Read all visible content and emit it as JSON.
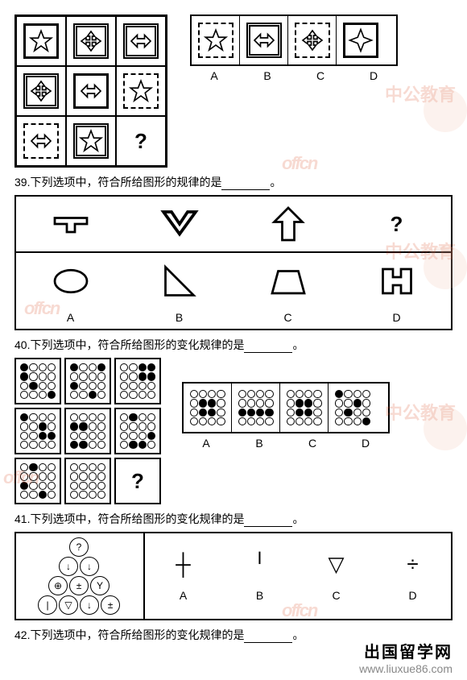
{
  "questions": {
    "q39": {
      "text": "39.下列选项中，符合所给图形的规律的是",
      "punct": "。"
    },
    "q40": {
      "text": "40.下列选项中，符合所给图形的变化规律的是",
      "punct": "。"
    },
    "q41": {
      "text": "41.下列选项中，符合所给图形的变化规律的是",
      "punct": "。"
    },
    "q42": {
      "text": "42.下列选项中，符合所给图形的变化规律的是",
      "punct": "。"
    }
  },
  "labels": {
    "A": "A",
    "B": "B",
    "C": "C",
    "D": "D"
  },
  "qmark": "?",
  "q38": {
    "grid": [
      {
        "frame": "solid",
        "shape": "star"
      },
      {
        "frame": "thick",
        "shape": "cross-arrow"
      },
      {
        "frame": "thick",
        "shape": "dbl-arrow"
      },
      {
        "frame": "thick",
        "shape": "cross-arrow"
      },
      {
        "frame": "solid",
        "shape": "dbl-arrow"
      },
      {
        "frame": "dashed",
        "shape": "star"
      },
      {
        "frame": "dashed",
        "shape": "dbl-arrow"
      },
      {
        "frame": "thick",
        "shape": "star"
      },
      {
        "frame": "none",
        "shape": "qmark"
      }
    ],
    "options": [
      {
        "frame": "dashed",
        "shape": "star"
      },
      {
        "frame": "thick",
        "shape": "dbl-arrow"
      },
      {
        "frame": "dashed",
        "shape": "cross-arrow"
      },
      {
        "frame": "solid",
        "shape": "four-star"
      }
    ]
  },
  "q39": {
    "top": [
      "t-shape",
      "chevron-down",
      "up-arrow",
      "qmark"
    ],
    "bottom": [
      "ellipse",
      "right-triangle",
      "trapezoid",
      "h-shape"
    ]
  },
  "q40": {
    "grid": [
      [
        0,
        4,
        9,
        15
      ],
      [
        0,
        3,
        8,
        14
      ],
      [
        2,
        3,
        6,
        7
      ],
      [
        0,
        6,
        10,
        11
      ],
      [
        4,
        5,
        12,
        13
      ],
      [
        1,
        11,
        13,
        14
      ],
      [
        1,
        8,
        14
      ],
      [],
      "qmark"
    ],
    "options": [
      [
        5,
        6,
        9,
        10
      ],
      [
        8,
        9,
        10,
        11
      ],
      [
        5,
        6,
        9,
        10
      ],
      [
        0,
        6,
        9,
        15
      ]
    ]
  },
  "q41": {
    "pyramid": {
      "rows": [
        [
          "?"
        ],
        [
          "↓",
          "↓"
        ],
        [
          "⊕",
          "±",
          "Y"
        ],
        [
          "|",
          "▽",
          "↓",
          "±"
        ]
      ]
    },
    "options": [
      {
        "sym": "┼",
        "label": "A"
      },
      {
        "sym": "╵",
        "label": "B"
      },
      {
        "sym": "▽",
        "label": "C"
      },
      {
        "sym": "÷",
        "label": "D"
      }
    ]
  },
  "watermarks": {
    "offcn": "offcn",
    "zhongong": "中公教育"
  },
  "footer": {
    "site": "出国留学网",
    "url": "www.liuxue86.com"
  },
  "colors": {
    "wm": "#d83a0f",
    "text": "#000000",
    "bg": "#ffffff"
  }
}
